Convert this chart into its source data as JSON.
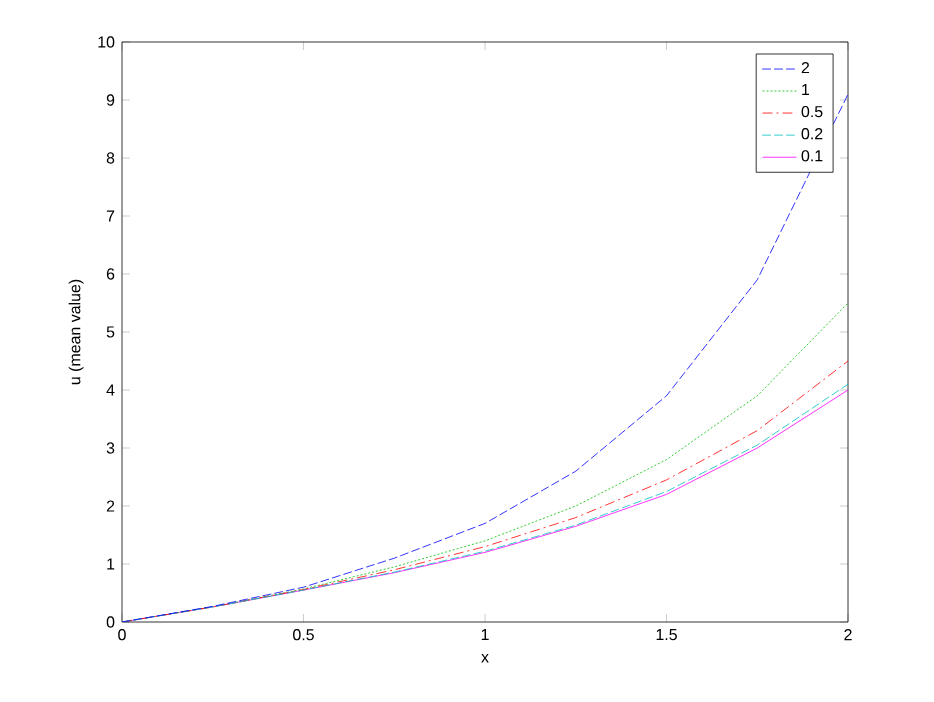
{
  "chart_data": {
    "type": "line",
    "xlabel": "x",
    "ylabel": "u (mean value)",
    "xlim": [
      0,
      2
    ],
    "ylim": [
      0,
      10
    ],
    "xticks": [
      0,
      0.5,
      1,
      1.5,
      2
    ],
    "yticks": [
      0,
      1,
      2,
      3,
      4,
      5,
      6,
      7,
      8,
      9,
      10
    ],
    "grid": false,
    "legend": "top right",
    "marker": "none",
    "x": [
      0,
      0.25,
      0.5,
      0.75,
      1,
      1.25,
      1.5,
      1.75,
      2
    ],
    "series": [
      {
        "name": "2",
        "color": "#0000ff",
        "line_style": "dashed",
        "values": [
          0,
          0.27,
          0.6,
          1.1,
          1.7,
          2.6,
          3.9,
          5.9,
          9.1
        ]
      },
      {
        "name": "1",
        "color": "#00c000",
        "line_style": "dotted",
        "values": [
          0,
          0.26,
          0.57,
          0.95,
          1.4,
          2.0,
          2.8,
          3.9,
          5.5
        ]
      },
      {
        "name": "0.5",
        "color": "#ff0000",
        "line_style": "dashdot",
        "values": [
          0,
          0.26,
          0.56,
          0.9,
          1.3,
          1.8,
          2.45,
          3.3,
          4.5
        ]
      },
      {
        "name": "0.2",
        "color": "#00bfbf",
        "line_style": "dashed",
        "values": [
          0,
          0.26,
          0.55,
          0.86,
          1.22,
          1.67,
          2.25,
          3.05,
          4.1
        ]
      },
      {
        "name": "0.1",
        "color": "#ff00ff",
        "line_style": "solid",
        "values": [
          0,
          0.26,
          0.55,
          0.85,
          1.2,
          1.65,
          2.2,
          3.0,
          4.0
        ]
      }
    ]
  }
}
